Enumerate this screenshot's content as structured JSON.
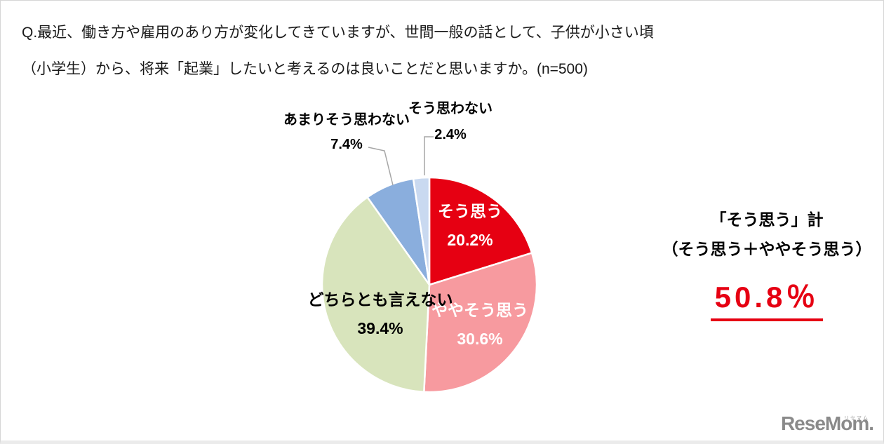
{
  "title": {
    "line1": "Q.最近、働き方や雇用のあり方が変化してきていますが、世間一般の話として、子供が小さい頃",
    "line2": "（小学生）から、将来「起業」したいと考えるのは良いことだと思いますか。(n=500)"
  },
  "chart_data": {
    "type": "pie",
    "title": "Q.最近、働き方や雇用のあり方が変化してきていますが、世間一般の話として、子供が小さい頃（小学生）から、将来「起業」したいと考えるのは良いことだと思いますか。",
    "sample_size": "(n=500)",
    "direction": "clockwise",
    "start_angle_deg": 0,
    "legend_position": "none",
    "categories": [
      "そう思う",
      "ややそう思う",
      "どちらとも言えない",
      "あまりそう思わない",
      "そう思わない"
    ],
    "values": [
      20.2,
      30.6,
      39.4,
      7.4,
      2.4
    ],
    "slices": [
      {
        "label": "そう思う",
        "value": 20.2,
        "pct": "20.2%",
        "color": "#e60012",
        "text_color": "#ffffff",
        "label_position": "inside"
      },
      {
        "label": "ややそう思う",
        "value": 30.6,
        "pct": "30.6%",
        "color": "#f79a9f",
        "text_color": "#ffffff",
        "label_position": "inside"
      },
      {
        "label": "どちらとも言えない",
        "value": 39.4,
        "pct": "39.4%",
        "color": "#d8e4bc",
        "text_color": "#000000",
        "label_position": "inside"
      },
      {
        "label": "あまりそう思わない",
        "value": 7.4,
        "pct": "7.4%",
        "color": "#8aaedd",
        "text_color": "#000000",
        "label_position": "outside"
      },
      {
        "label": "そう思わない",
        "value": 2.4,
        "pct": "2.4%",
        "color": "#c9d9f0",
        "text_color": "#000000",
        "label_position": "outside"
      }
    ]
  },
  "summary": {
    "line1": "「そう思う」計",
    "line2": "（そう思う＋ややそう思う）",
    "value": "50.8％",
    "accent_color": "#e60012"
  },
  "logo": {
    "text": "ReseMom.",
    "ruby": "リセマム",
    "color": "#8a8a8a"
  }
}
